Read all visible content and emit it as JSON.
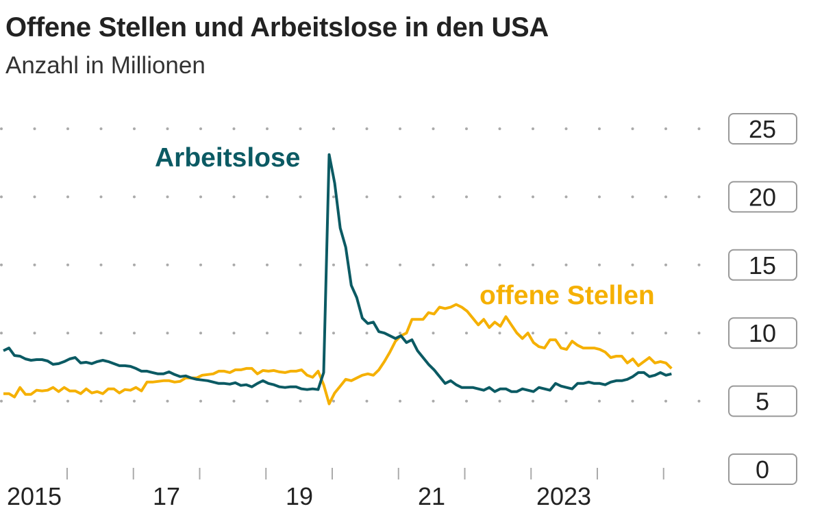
{
  "chart_data": {
    "type": "line",
    "title": "Offene Stellen und Arbeitslose in den USA",
    "subtitle": "Anzahl in Millionen",
    "ylim": [
      0,
      25
    ],
    "yticks": [
      "25",
      "20",
      "15",
      "10",
      "5",
      "0"
    ],
    "ytick_values": [
      25,
      20,
      15,
      10,
      5,
      0
    ],
    "xtick_labels": [
      "2015",
      "17",
      "19",
      "21",
      "2023"
    ],
    "grid": "dotted horizontal",
    "frequency": "monthly",
    "series": [
      {
        "name": "Arbeitslose",
        "color": "#0b5a63",
        "values": [
          8.7,
          8.9,
          8.35,
          8.3,
          8.1,
          8.0,
          8.05,
          8.05,
          7.95,
          7.7,
          7.75,
          7.9,
          8.1,
          8.2,
          7.8,
          7.85,
          7.75,
          7.9,
          8.0,
          7.9,
          7.75,
          7.6,
          7.6,
          7.55,
          7.4,
          7.2,
          7.2,
          7.1,
          7.0,
          7.0,
          7.15,
          6.95,
          6.8,
          6.85,
          6.7,
          6.6,
          6.55,
          6.5,
          6.4,
          6.3,
          6.3,
          6.25,
          6.35,
          6.15,
          6.2,
          6.05,
          6.3,
          6.5,
          6.3,
          6.2,
          6.05,
          6.0,
          6.05,
          6.05,
          5.9,
          5.85,
          5.9,
          5.85,
          7.1,
          23.1,
          21.0,
          17.7,
          16.3,
          13.5,
          12.6,
          11.1,
          10.7,
          10.8,
          10.1,
          10.0,
          9.8,
          9.6,
          9.8,
          9.3,
          9.5,
          8.7,
          8.2,
          7.7,
          7.3,
          6.8,
          6.3,
          6.5,
          6.2,
          6.0,
          6.0,
          6.0,
          5.9,
          5.8,
          6.0,
          5.7,
          5.9,
          5.9,
          5.7,
          5.7,
          5.9,
          5.8,
          5.7,
          6.0,
          5.9,
          5.8,
          6.3,
          6.1,
          6.0,
          5.9,
          6.3,
          6.3,
          6.4,
          6.3,
          6.3,
          6.2,
          6.4,
          6.5,
          6.5,
          6.6,
          6.8,
          7.1,
          7.1,
          6.8,
          6.9,
          7.1,
          6.9,
          7.0
        ]
      },
      {
        "name": "offene Stellen",
        "color": "#f5b000",
        "values": [
          5.55,
          5.55,
          5.3,
          6.0,
          5.5,
          5.5,
          5.8,
          5.75,
          5.8,
          6.0,
          5.7,
          6.0,
          5.75,
          5.75,
          5.55,
          5.9,
          5.6,
          5.7,
          5.55,
          5.9,
          5.9,
          5.6,
          5.85,
          5.8,
          6.0,
          5.75,
          6.4,
          6.4,
          6.45,
          6.5,
          6.5,
          6.4,
          6.45,
          6.7,
          6.7,
          6.7,
          6.9,
          6.95,
          7.0,
          7.2,
          7.2,
          7.1,
          7.3,
          7.3,
          7.4,
          7.4,
          7.0,
          7.25,
          7.2,
          7.25,
          7.15,
          7.1,
          7.2,
          7.2,
          7.3,
          6.9,
          6.75,
          7.2,
          6.2,
          4.8,
          5.6,
          6.1,
          6.6,
          6.5,
          6.7,
          6.9,
          7.0,
          6.9,
          7.3,
          7.9,
          8.6,
          9.4,
          9.8,
          10.0,
          11.0,
          11.0,
          11.0,
          11.5,
          11.4,
          11.9,
          11.8,
          11.9,
          12.1,
          11.9,
          11.6,
          11.1,
          10.6,
          11.0,
          10.4,
          10.8,
          10.5,
          11.2,
          10.6,
          10.0,
          9.6,
          10.0,
          9.3,
          9.0,
          8.9,
          9.5,
          9.5,
          8.9,
          8.8,
          9.4,
          9.1,
          8.9,
          8.9,
          8.9,
          8.8,
          8.6,
          8.2,
          8.3,
          8.3,
          7.8,
          8.1,
          7.6,
          7.9,
          8.2,
          7.8,
          7.9,
          7.8,
          7.4
        ]
      }
    ]
  }
}
